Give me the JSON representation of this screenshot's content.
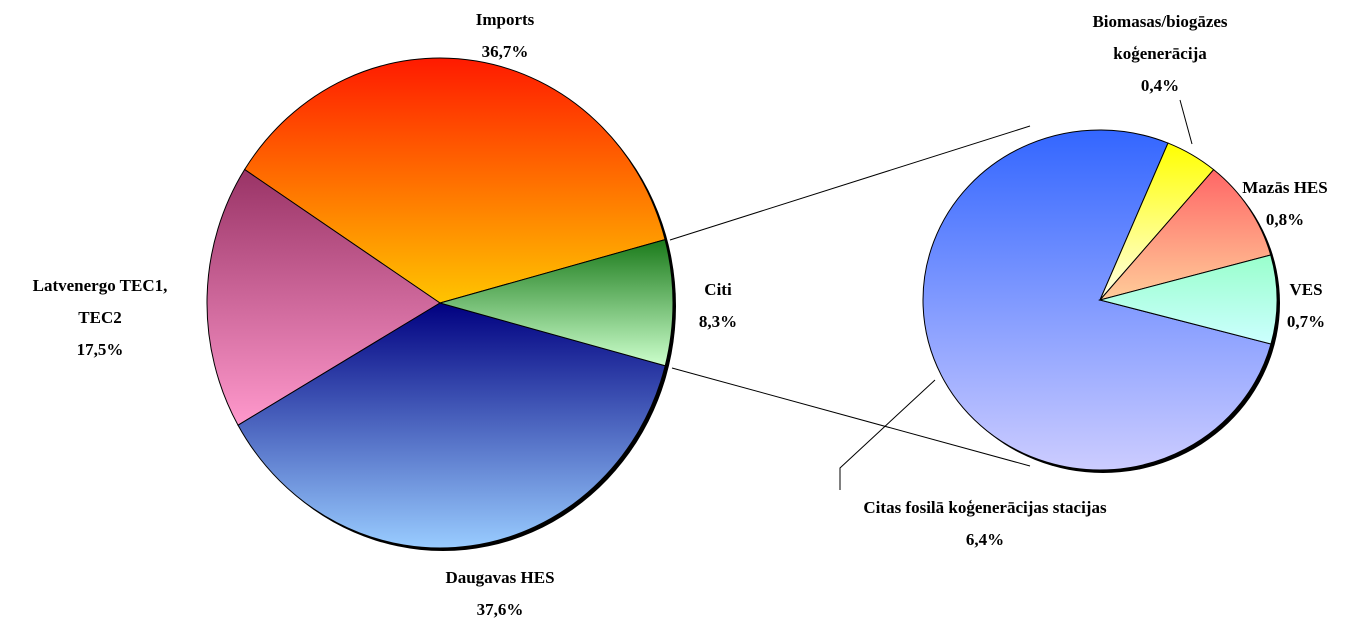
{
  "chart_data": [
    {
      "type": "pie",
      "categories": [
        "Imports",
        "Latvenergo TEC1, TEC2",
        "Daugavas HES",
        "Citi"
      ],
      "values": [
        36.7,
        17.5,
        37.6,
        8.3
      ],
      "value_labels": [
        "36,7%",
        "17,5%",
        "37,6%",
        "8,3%"
      ],
      "colors": [
        [
          "#ff1a00",
          "#ffc400"
        ],
        [
          "#993366",
          "#ff99cc"
        ],
        [
          "#000080",
          "#99ccff"
        ],
        [
          "#1a7a1a",
          "#ccffcc"
        ]
      ]
    },
    {
      "type": "pie",
      "categories": [
        "Citas fosilā koģenerācijas stacijas",
        "Biomasas/biogāzes koģenerācija",
        "Mazās HES",
        "VES"
      ],
      "values": [
        6.4,
        0.4,
        0.8,
        0.7
      ],
      "value_labels": [
        "6,4%",
        "0,4%",
        "0,8%",
        "0,7%"
      ],
      "colors": [
        [
          "#3366ff",
          "#ccccff"
        ],
        [
          "#ffff00",
          "#ffffe6"
        ],
        [
          "#ff6666",
          "#ffcc99"
        ],
        [
          "#99ffcc",
          "#ccffff"
        ]
      ]
    }
  ]
}
